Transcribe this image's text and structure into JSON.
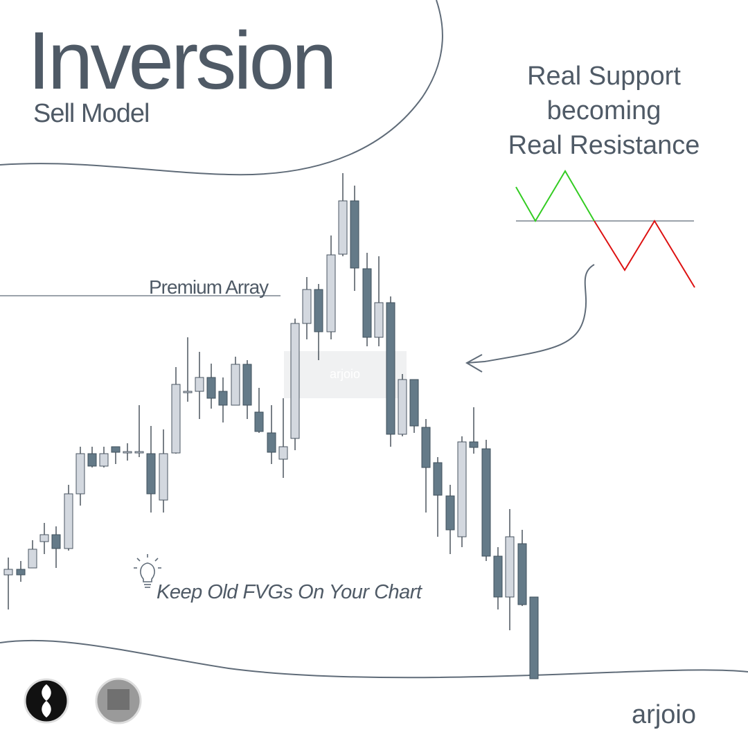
{
  "header": {
    "title": "Inversion",
    "subtitle": "Sell Model"
  },
  "note": {
    "lines": [
      "Real Support",
      "becoming",
      "Real Resistance"
    ]
  },
  "chart": {
    "level_label": "Premium Array",
    "watermark": "arjoio"
  },
  "tip": "Keep Old FVGs On Your Chart",
  "footer": {
    "brand": "arjoio"
  }
}
